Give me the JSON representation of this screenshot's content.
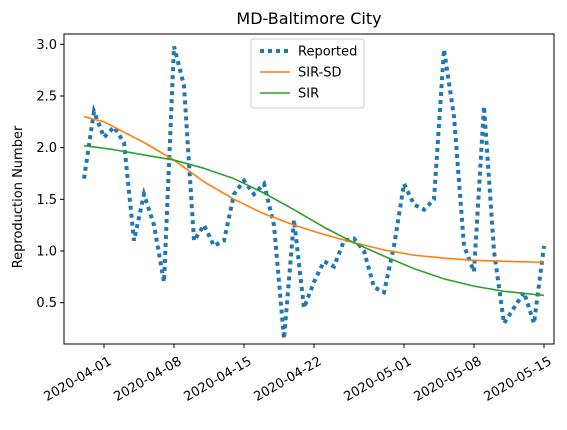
{
  "chart_data": {
    "type": "line",
    "title": "MD-Baltimore City",
    "xlabel": "",
    "ylabel": "Reproduction Number",
    "x_range": [
      "2020-03-28",
      "2020-05-16"
    ],
    "ylim": [
      0.1,
      3.1
    ],
    "xticks": [
      "2020-04-01",
      "2020-04-08",
      "2020-04-15",
      "2020-04-22",
      "2020-05-01",
      "2020-05-08",
      "2020-05-15"
    ],
    "yticks": [
      0.5,
      1.0,
      1.5,
      2.0,
      2.5,
      3.0
    ],
    "ytick_labels": [
      "0.5",
      "1.0",
      "1.5",
      "2.0",
      "2.5",
      "3.0"
    ],
    "grid": false,
    "legend_position": "top-center",
    "series": [
      {
        "name": "Reported",
        "color": "#1f77b4",
        "style": "dotted",
        "points": [
          [
            "2020-03-30",
            1.7
          ],
          [
            "2020-03-31",
            2.35
          ],
          [
            "2020-04-01",
            2.1
          ],
          [
            "2020-04-02",
            2.2
          ],
          [
            "2020-04-03",
            2.05
          ],
          [
            "2020-04-04",
            1.1
          ],
          [
            "2020-04-05",
            1.55
          ],
          [
            "2020-04-06",
            1.25
          ],
          [
            "2020-04-07",
            0.7
          ],
          [
            "2020-04-08",
            2.98
          ],
          [
            "2020-04-09",
            2.6
          ],
          [
            "2020-04-10",
            1.1
          ],
          [
            "2020-04-11",
            1.25
          ],
          [
            "2020-04-12",
            1.05
          ],
          [
            "2020-04-13",
            1.1
          ],
          [
            "2020-04-14",
            1.55
          ],
          [
            "2020-04-15",
            1.68
          ],
          [
            "2020-04-16",
            1.55
          ],
          [
            "2020-04-17",
            1.65
          ],
          [
            "2020-04-18",
            1.25
          ],
          [
            "2020-04-19",
            0.15
          ],
          [
            "2020-04-20",
            1.3
          ],
          [
            "2020-04-21",
            0.45
          ],
          [
            "2020-04-22",
            0.7
          ],
          [
            "2020-04-23",
            0.9
          ],
          [
            "2020-04-24",
            0.85
          ],
          [
            "2020-04-25",
            1.1
          ],
          [
            "2020-04-26",
            1.12
          ],
          [
            "2020-04-27",
            1.0
          ],
          [
            "2020-04-28",
            0.65
          ],
          [
            "2020-04-29",
            0.6
          ],
          [
            "2020-04-30",
            1.05
          ],
          [
            "2020-05-01",
            1.65
          ],
          [
            "2020-05-02",
            1.45
          ],
          [
            "2020-05-03",
            1.4
          ],
          [
            "2020-05-04",
            1.5
          ],
          [
            "2020-05-05",
            2.95
          ],
          [
            "2020-05-06",
            2.3
          ],
          [
            "2020-05-07",
            1.05
          ],
          [
            "2020-05-08",
            0.8
          ],
          [
            "2020-05-09",
            2.4
          ],
          [
            "2020-05-10",
            1.0
          ],
          [
            "2020-05-11",
            0.3
          ],
          [
            "2020-05-12",
            0.45
          ],
          [
            "2020-05-13",
            0.6
          ],
          [
            "2020-05-14",
            0.3
          ],
          [
            "2020-05-15",
            1.05
          ]
        ]
      },
      {
        "name": "SIR-SD",
        "color": "#ff7f0e",
        "style": "solid",
        "points": [
          [
            "2020-03-30",
            2.3
          ],
          [
            "2020-04-01",
            2.25
          ],
          [
            "2020-04-03",
            2.15
          ],
          [
            "2020-04-05",
            2.05
          ],
          [
            "2020-04-08",
            1.88
          ],
          [
            "2020-04-11",
            1.67
          ],
          [
            "2020-04-14",
            1.5
          ],
          [
            "2020-04-17",
            1.36
          ],
          [
            "2020-04-20",
            1.25
          ],
          [
            "2020-04-23",
            1.16
          ],
          [
            "2020-04-26",
            1.08
          ],
          [
            "2020-04-29",
            1.01
          ],
          [
            "2020-05-02",
            0.96
          ],
          [
            "2020-05-05",
            0.93
          ],
          [
            "2020-05-08",
            0.91
          ],
          [
            "2020-05-11",
            0.9
          ],
          [
            "2020-05-15",
            0.89
          ]
        ]
      },
      {
        "name": "SIR",
        "color": "#2ca02c",
        "style": "solid",
        "points": [
          [
            "2020-03-30",
            2.02
          ],
          [
            "2020-04-02",
            1.98
          ],
          [
            "2020-04-05",
            1.93
          ],
          [
            "2020-04-08",
            1.88
          ],
          [
            "2020-04-11",
            1.8
          ],
          [
            "2020-04-14",
            1.7
          ],
          [
            "2020-04-17",
            1.56
          ],
          [
            "2020-04-20",
            1.4
          ],
          [
            "2020-04-23",
            1.23
          ],
          [
            "2020-04-26",
            1.08
          ],
          [
            "2020-04-29",
            0.95
          ],
          [
            "2020-05-02",
            0.83
          ],
          [
            "2020-05-05",
            0.73
          ],
          [
            "2020-05-08",
            0.66
          ],
          [
            "2020-05-11",
            0.61
          ],
          [
            "2020-05-15",
            0.57
          ]
        ]
      }
    ]
  }
}
